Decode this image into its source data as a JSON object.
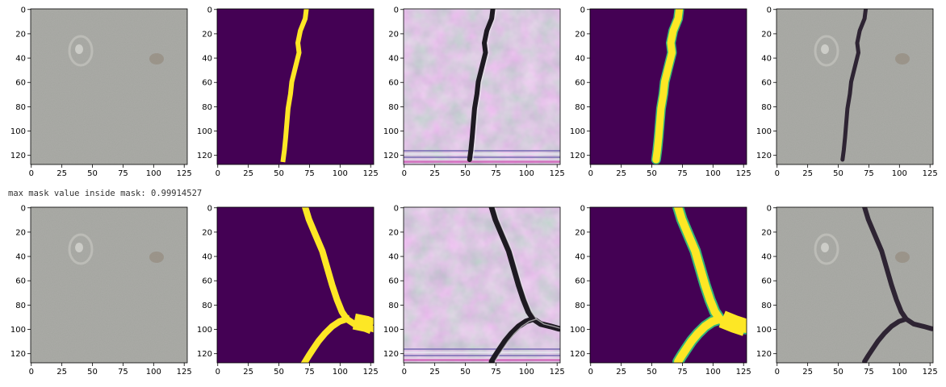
{
  "figure": {
    "axis": {
      "x_ticks": [
        "0",
        "25",
        "50",
        "75",
        "100",
        "125"
      ],
      "y_ticks": [
        "0",
        "20",
        "40",
        "60",
        "80",
        "100",
        "120"
      ]
    },
    "log_line": "max mask value inside mask: 0.99914527",
    "colors": {
      "viridis_dark": "#440154",
      "viridis_yellow": "#fde725",
      "viridis_green": "#35b779",
      "concrete": "#a3a49f",
      "crack": "#2e2433"
    },
    "rows": [
      {
        "panels": [
          {
            "kind": "concrete-photo"
          },
          {
            "kind": "binary-mask"
          },
          {
            "kind": "generated-texture"
          },
          {
            "kind": "soft-mask"
          },
          {
            "kind": "composite-photo"
          }
        ]
      },
      {
        "panels": [
          {
            "kind": "concrete-photo"
          },
          {
            "kind": "binary-mask"
          },
          {
            "kind": "generated-texture"
          },
          {
            "kind": "soft-mask"
          },
          {
            "kind": "composite-photo"
          }
        ]
      }
    ]
  }
}
